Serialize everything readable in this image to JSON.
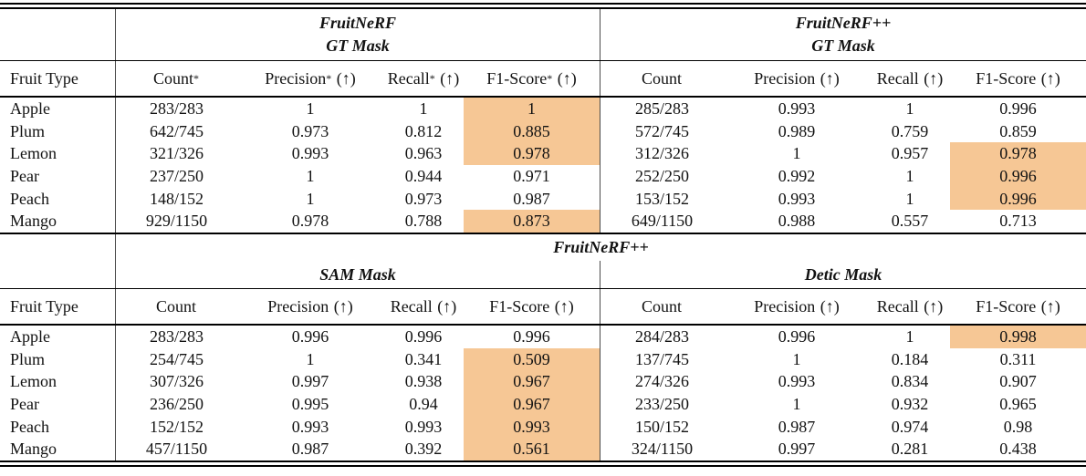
{
  "styles": {
    "highlight_color": "#F6C795",
    "rule_color": "#000000",
    "divider_color": "#4a4a4a",
    "text_color": "#121212"
  },
  "tables": [
    {
      "fruit_col_header": "Fruit Type",
      "span_title": "",
      "groups": [
        {
          "line1": "FruitNeRF",
          "line2": "GT Mask"
        },
        {
          "line1": "FruitNeRF++",
          "line2": "GT Mask"
        }
      ],
      "columns_g1": [
        {
          "label": "Count",
          "star": "*",
          "arrow": ""
        },
        {
          "label": "Precision",
          "star": "*",
          "arrow": " (↑)"
        },
        {
          "label": "Recall",
          "star": "*",
          "arrow": " (↑)"
        },
        {
          "label": "F1-Score",
          "star": "*",
          "arrow": " (↑)"
        }
      ],
      "columns_g2": [
        {
          "label": "Count",
          "star": "",
          "arrow": ""
        },
        {
          "label": "Precision",
          "star": "",
          "arrow": " (↑)"
        },
        {
          "label": "Recall",
          "star": "",
          "arrow": " (↑)"
        },
        {
          "label": "F1-Score",
          "star": "",
          "arrow": " (↑)"
        }
      ],
      "rows": [
        {
          "fruit": "Apple",
          "g1": [
            "283/283",
            "1",
            "1",
            "1"
          ],
          "g1_hl": true,
          "g2": [
            "285/283",
            "0.993",
            "1",
            "0.996"
          ],
          "g2_hl": false
        },
        {
          "fruit": "Plum",
          "g1": [
            "642/745",
            "0.973",
            "0.812",
            "0.885"
          ],
          "g1_hl": true,
          "g2": [
            "572/745",
            "0.989",
            "0.759",
            "0.859"
          ],
          "g2_hl": false
        },
        {
          "fruit": "Lemon",
          "g1": [
            "321/326",
            "0.993",
            "0.963",
            "0.978"
          ],
          "g1_hl": true,
          "g2": [
            "312/326",
            "1",
            "0.957",
            "0.978"
          ],
          "g2_hl": true
        },
        {
          "fruit": "Pear",
          "g1": [
            "237/250",
            "1",
            "0.944",
            "0.971"
          ],
          "g1_hl": false,
          "g2": [
            "252/250",
            "0.992",
            "1",
            "0.996"
          ],
          "g2_hl": true
        },
        {
          "fruit": "Peach",
          "g1": [
            "148/152",
            "1",
            "0.973",
            "0.987"
          ],
          "g1_hl": false,
          "g2": [
            "153/152",
            "0.993",
            "1",
            "0.996"
          ],
          "g2_hl": true
        },
        {
          "fruit": "Mango",
          "g1": [
            "929/1150",
            "0.978",
            "0.788",
            "0.873"
          ],
          "g1_hl": true,
          "g2": [
            "649/1150",
            "0.988",
            "0.557",
            "0.713"
          ],
          "g2_hl": false
        }
      ]
    },
    {
      "fruit_col_header": "Fruit Type",
      "span_title": "FruitNeRF++",
      "groups": [
        {
          "line1": "",
          "line2": "SAM Mask"
        },
        {
          "line1": "",
          "line2": "Detic Mask"
        }
      ],
      "columns_g1": [
        {
          "label": "Count",
          "star": "",
          "arrow": ""
        },
        {
          "label": "Precision",
          "star": "",
          "arrow": " (↑)"
        },
        {
          "label": "Recall",
          "star": "",
          "arrow": " (↑)"
        },
        {
          "label": "F1-Score",
          "star": "",
          "arrow": " (↑)"
        }
      ],
      "columns_g2": [
        {
          "label": "Count",
          "star": "",
          "arrow": ""
        },
        {
          "label": "Precision",
          "star": "",
          "arrow": " (↑)"
        },
        {
          "label": "Recall",
          "star": "",
          "arrow": " (↑)"
        },
        {
          "label": "F1-Score",
          "star": "",
          "arrow": " (↑)"
        }
      ],
      "rows": [
        {
          "fruit": "Apple",
          "g1": [
            "283/283",
            "0.996",
            "0.996",
            "0.996"
          ],
          "g1_hl": false,
          "g2": [
            "284/283",
            "0.996",
            "1",
            "0.998"
          ],
          "g2_hl": true
        },
        {
          "fruit": "Plum",
          "g1": [
            "254/745",
            "1",
            "0.341",
            "0.509"
          ],
          "g1_hl": true,
          "g2": [
            "137/745",
            "1",
            "0.184",
            "0.311"
          ],
          "g2_hl": false
        },
        {
          "fruit": "Lemon",
          "g1": [
            "307/326",
            "0.997",
            "0.938",
            "0.967"
          ],
          "g1_hl": true,
          "g2": [
            "274/326",
            "0.993",
            "0.834",
            "0.907"
          ],
          "g2_hl": false
        },
        {
          "fruit": "Pear",
          "g1": [
            "236/250",
            "0.995",
            "0.94",
            "0.967"
          ],
          "g1_hl": true,
          "g2": [
            "233/250",
            "1",
            "0.932",
            "0.965"
          ],
          "g2_hl": false
        },
        {
          "fruit": "Peach",
          "g1": [
            "152/152",
            "0.993",
            "0.993",
            "0.993"
          ],
          "g1_hl": true,
          "g2": [
            "150/152",
            "0.987",
            "0.974",
            "0.98"
          ],
          "g2_hl": false
        },
        {
          "fruit": "Mango",
          "g1": [
            "457/1150",
            "0.987",
            "0.392",
            "0.561"
          ],
          "g1_hl": true,
          "g2": [
            "324/1150",
            "0.997",
            "0.281",
            "0.438"
          ],
          "g2_hl": false
        }
      ]
    }
  ]
}
